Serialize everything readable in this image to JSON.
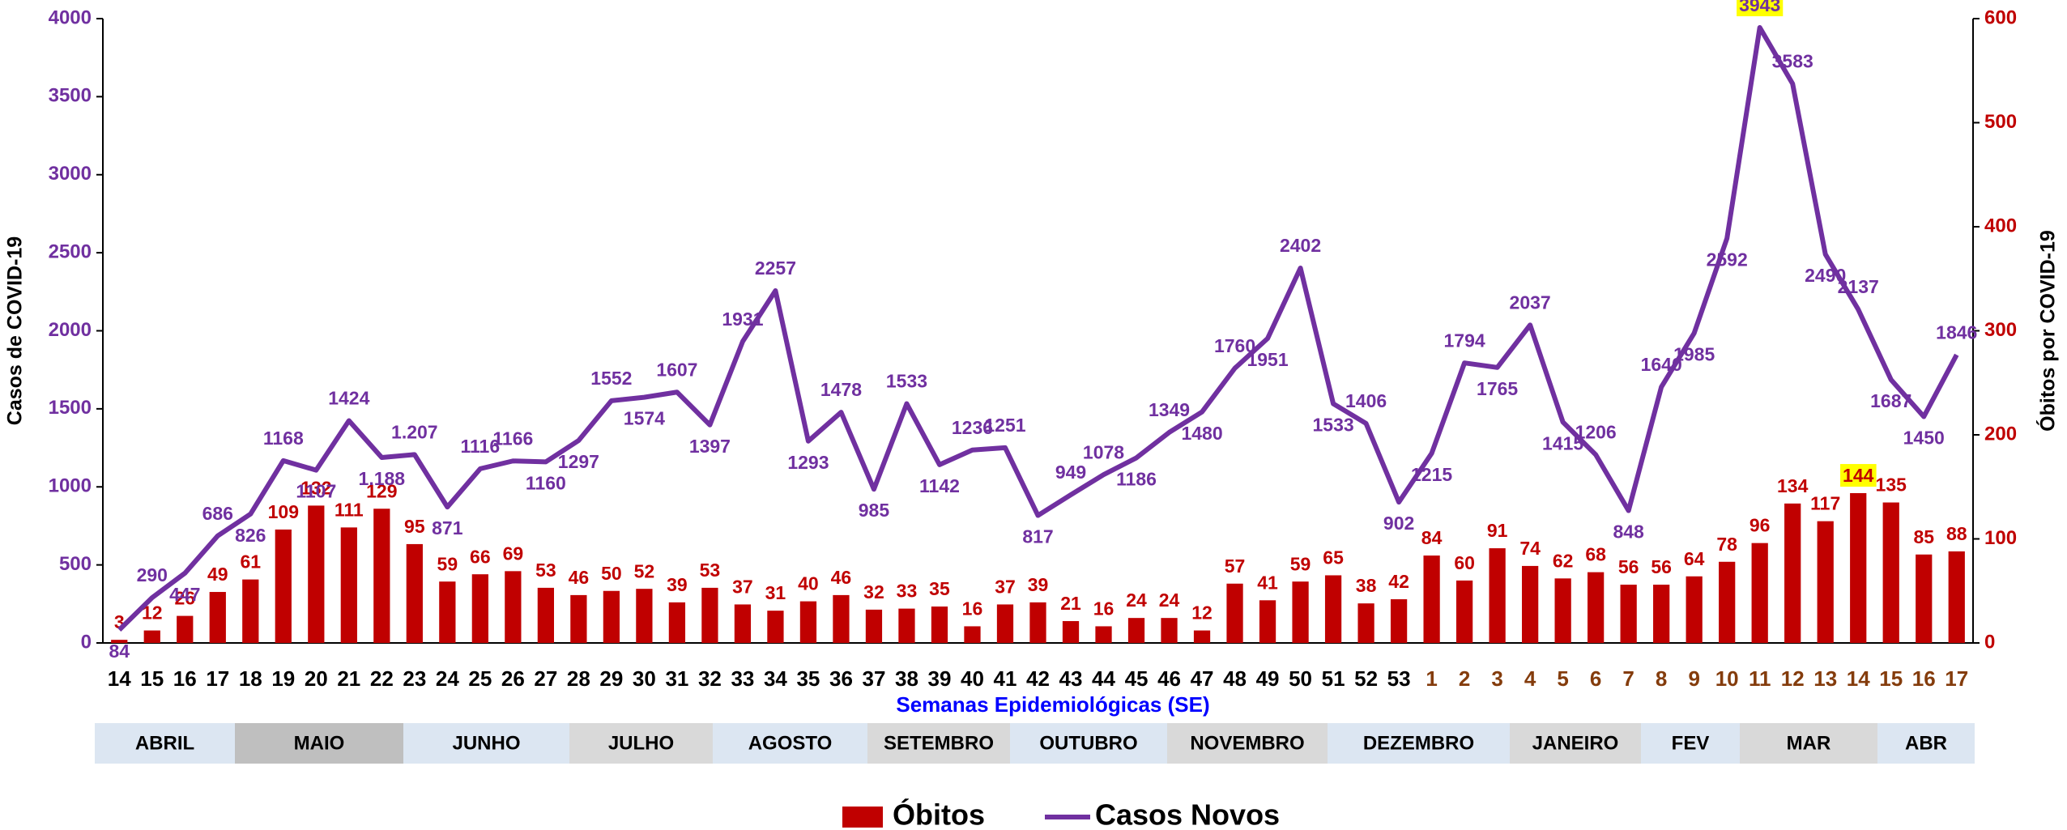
{
  "chart_data": {
    "type": "bar-line",
    "x_label": "Semanas Epidemiológicas (SE)",
    "y_label": "Casos de COVID-19",
    "y2_label": "Óbitos por COVID-19",
    "categories": [
      "14",
      "15",
      "16",
      "17",
      "18",
      "19",
      "20",
      "21",
      "22",
      "23",
      "24",
      "25",
      "26",
      "27",
      "28",
      "29",
      "30",
      "31",
      "32",
      "33",
      "34",
      "35",
      "36",
      "37",
      "38",
      "39",
      "40",
      "41",
      "42",
      "43",
      "44",
      "45",
      "46",
      "47",
      "48",
      "49",
      "50",
      "51",
      "52",
      "53",
      "1",
      "2",
      "3",
      "4",
      "5",
      "6",
      "7",
      "8",
      "9",
      "10",
      "11",
      "12",
      "13",
      "14",
      "15",
      "16",
      "17"
    ],
    "category_colors": [
      "#000000",
      "#000000",
      "#000000",
      "#000000",
      "#000000",
      "#000000",
      "#000000",
      "#000000",
      "#000000",
      "#000000",
      "#000000",
      "#000000",
      "#000000",
      "#000000",
      "#000000",
      "#000000",
      "#000000",
      "#000000",
      "#000000",
      "#000000",
      "#000000",
      "#000000",
      "#000000",
      "#000000",
      "#000000",
      "#000000",
      "#000000",
      "#000000",
      "#000000",
      "#000000",
      "#000000",
      "#000000",
      "#000000",
      "#000000",
      "#000000",
      "#000000",
      "#000000",
      "#000000",
      "#000000",
      "#000000",
      "#843c0c",
      "#843c0c",
      "#843c0c",
      "#843c0c",
      "#843c0c",
      "#843c0c",
      "#843c0c",
      "#843c0c",
      "#843c0c",
      "#843c0c",
      "#843c0c",
      "#843c0c",
      "#843c0c",
      "#843c0c",
      "#843c0c",
      "#843c0c",
      "#843c0c"
    ],
    "series": [
      {
        "name": "Óbitos",
        "type": "bar",
        "axis": "y2",
        "color": "#c00000",
        "label_color": "#c00000",
        "highlight": 53,
        "values": [
          3,
          12,
          26,
          49,
          61,
          109,
          132,
          111,
          129,
          95,
          59,
          66,
          69,
          53,
          46,
          50,
          52,
          39,
          53,
          37,
          31,
          40,
          46,
          32,
          33,
          35,
          16,
          37,
          39,
          21,
          16,
          24,
          24,
          12,
          57,
          41,
          59,
          65,
          38,
          42,
          84,
          60,
          91,
          74,
          62,
          68,
          56,
          56,
          64,
          78,
          96,
          134,
          117,
          144,
          135,
          85,
          88
        ]
      },
      {
        "name": "Casos Novos",
        "type": "line",
        "axis": "y",
        "color": "#7030a0",
        "label_color": "#7030a0",
        "highlight": 50,
        "values": [
          84,
          290,
          447,
          686,
          826,
          1168,
          1107,
          1424,
          1188,
          1207,
          871,
          1116,
          1166,
          1160,
          1297,
          1552,
          1574,
          1607,
          1397,
          1931,
          2257,
          1293,
          1478,
          985,
          1533,
          1142,
          1236,
          1251,
          817,
          949,
          1078,
          1186,
          1349,
          1480,
          1760,
          1951,
          2402,
          1533,
          1406,
          902,
          1215,
          1794,
          1765,
          2037,
          1415,
          1206,
          848,
          1640,
          1985,
          2592,
          3943,
          3583,
          2490,
          2137,
          1687,
          1450,
          1846
        ],
        "value_labels": [
          null,
          null,
          null,
          null,
          null,
          null,
          null,
          null,
          "1.188",
          "1.207",
          null,
          null,
          null,
          null,
          null,
          null,
          null,
          null,
          null,
          null,
          null,
          null,
          null,
          null,
          null,
          null,
          null,
          null,
          null,
          null,
          null,
          null,
          null,
          null,
          null,
          null,
          null,
          null,
          null,
          null,
          null,
          null,
          null,
          null,
          null,
          null,
          null,
          null,
          null,
          null,
          null,
          null,
          null,
          null,
          null,
          null,
          null
        ]
      }
    ],
    "highlight_color": "#ffff00",
    "ylim": [
      0,
      4000
    ],
    "yticks": [
      0,
      500,
      1000,
      1500,
      2000,
      2500,
      3000,
      3500,
      4000
    ],
    "y2lim": [
      0,
      600
    ],
    "y2ticks": [
      0,
      100,
      200,
      300,
      400,
      500,
      600
    ],
    "axis_label_color": "#7030a0",
    "y2_tick_color": "#c00000",
    "x_label_color": "#0000ff",
    "months": [
      {
        "label": "ABRIL",
        "color": "#dce6f2"
      },
      {
        "label": "MAIO",
        "color": "#bfbfbf"
      },
      {
        "label": "JUNHO",
        "color": "#dce6f2"
      },
      {
        "label": "JULHO",
        "color": "#d9d9d9"
      },
      {
        "label": "AGOSTO",
        "color": "#dce6f2"
      },
      {
        "label": "SETEMBRO",
        "color": "#d9d9d9"
      },
      {
        "label": "OUTUBRO",
        "color": "#dce6f2"
      },
      {
        "label": "NOVEMBRO",
        "color": "#d9d9d9"
      },
      {
        "label": "DEZEMBRO",
        "color": "#dce6f2"
      },
      {
        "label": "JANEIRO",
        "color": "#d9d9d9"
      },
      {
        "label": "FEV",
        "color": "#dce6f2"
      },
      {
        "label": "MAR",
        "color": "#d9d9d9"
      },
      {
        "label": "ABR",
        "color": "#dce6f2"
      }
    ],
    "legend": "bottom"
  }
}
